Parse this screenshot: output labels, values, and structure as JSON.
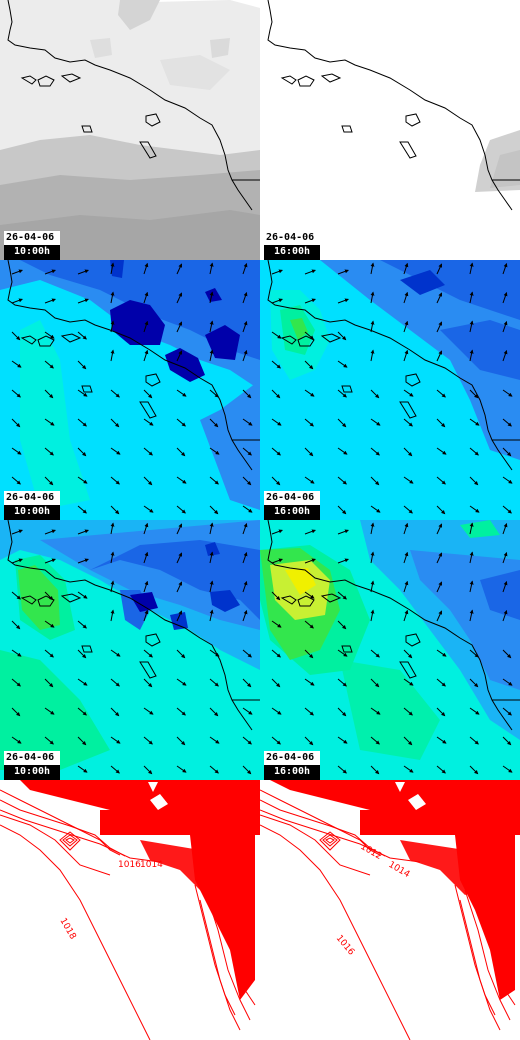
{
  "panels": [
    {
      "id": "cloud-10",
      "row": 0,
      "col": 0,
      "kind": "cloud",
      "date": "26-04-06",
      "time": "10:00h"
    },
    {
      "id": "cloud-16",
      "row": 0,
      "col": 1,
      "kind": "cloud",
      "date": "26-04-06",
      "time": "16:00h"
    },
    {
      "id": "wind-a-10",
      "row": 1,
      "col": 0,
      "kind": "wind-blue",
      "date": "26-04-06",
      "time": "10:00h"
    },
    {
      "id": "wind-a-16",
      "row": 1,
      "col": 1,
      "kind": "wind-blue",
      "date": "26-04-06",
      "time": "16:00h"
    },
    {
      "id": "wind-b-10",
      "row": 2,
      "col": 0,
      "kind": "wind-green",
      "date": "26-04-06",
      "time": "10:00h"
    },
    {
      "id": "wind-b-16",
      "row": 2,
      "col": 1,
      "kind": "wind-green",
      "date": "26-04-06",
      "time": "16:00h"
    },
    {
      "id": "pressure-10",
      "row": 3,
      "col": 0,
      "kind": "pressure",
      "isobar_labels": [
        "1016",
        "1014",
        "1018"
      ]
    },
    {
      "id": "pressure-16",
      "row": 3,
      "col": 1,
      "kind": "pressure",
      "isobar_labels": [
        "1012",
        "1014",
        "1016"
      ]
    }
  ],
  "colors": {
    "coastline": "#000000",
    "isobar": "#ff0000",
    "wind_scale": [
      "#0000aa",
      "#0033cc",
      "#1a66e6",
      "#2a8cf2",
      "#1ab4f5",
      "#00e0ff",
      "#00f0e0",
      "#00f0a0",
      "#33e64d",
      "#c8f033",
      "#f0f000"
    ],
    "cloud_light": "#f5f5f5",
    "cloud_dark": "#a8a8a8"
  }
}
